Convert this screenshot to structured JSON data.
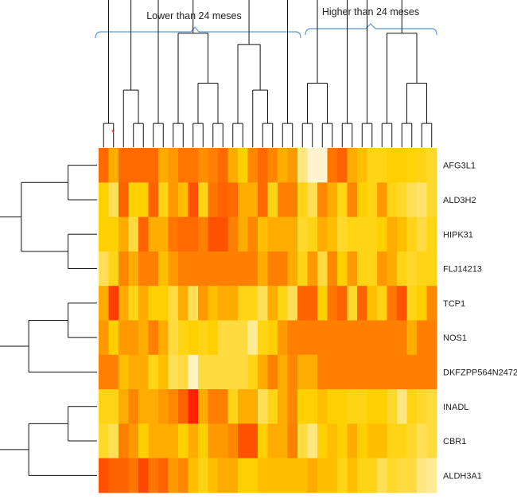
{
  "chart_data": {
    "type": "heatmap",
    "groups": [
      {
        "label": "Lower than 24 meses"
      },
      {
        "label": "Higher than 24 meses"
      }
    ],
    "rows": [
      "AFG3L1",
      "ALD3H2",
      "HIPK31",
      "FLJ14213",
      "TCP1",
      "NOS1",
      "DKFZPP564N2472",
      "INADL",
      "CBR1",
      "ALDH3A1"
    ],
    "color_scale": {
      "low": "#fff6d6",
      "mid": "#ffd000",
      "high": "#ff1a00"
    },
    "marker_symbol": "*",
    "marker_color": "#e02020",
    "values": [
      [
        0.78,
        0.6,
        0.78,
        0.78,
        0.78,
        0.78,
        0.6,
        0.65,
        0.75,
        0.75,
        0.68,
        0.72,
        0.78,
        0.6,
        0.5,
        0.7,
        0.78,
        0.7,
        0.6,
        0.65,
        0.2,
        0.02,
        0.02,
        0.75,
        0.8,
        0.6,
        0.55,
        0.45,
        0.45,
        0.5,
        0.5,
        0.48,
        0.45,
        0.4
      ],
      [
        0.5,
        0.3,
        0.8,
        0.5,
        0.5,
        0.8,
        0.45,
        0.65,
        0.55,
        0.85,
        0.45,
        0.75,
        0.8,
        0.78,
        0.6,
        0.6,
        0.78,
        0.45,
        0.72,
        0.72,
        0.45,
        0.3,
        0.7,
        0.6,
        0.45,
        0.7,
        0.5,
        0.45,
        0.65,
        0.45,
        0.4,
        0.3,
        0.25,
        0.4
      ],
      [
        0.5,
        0.5,
        0.6,
        0.35,
        0.8,
        0.6,
        0.6,
        0.75,
        0.78,
        0.78,
        0.72,
        0.85,
        0.85,
        0.72,
        0.6,
        0.7,
        0.55,
        0.6,
        0.6,
        0.6,
        0.4,
        0.45,
        0.6,
        0.55,
        0.4,
        0.45,
        0.45,
        0.45,
        0.5,
        0.6,
        0.55,
        0.45,
        0.35,
        0.45
      ],
      [
        0.3,
        0.45,
        0.7,
        0.6,
        0.72,
        0.72,
        0.55,
        0.65,
        0.72,
        0.72,
        0.72,
        0.72,
        0.72,
        0.72,
        0.72,
        0.72,
        0.6,
        0.72,
        0.72,
        0.6,
        0.45,
        0.65,
        0.35,
        0.7,
        0.5,
        0.65,
        0.45,
        0.45,
        0.65,
        0.6,
        0.45,
        0.4,
        0.45,
        0.45
      ],
      [
        0.6,
        0.9,
        0.6,
        0.45,
        0.6,
        0.5,
        0.5,
        0.35,
        0.6,
        0.3,
        0.65,
        0.55,
        0.6,
        0.6,
        0.45,
        0.45,
        0.3,
        0.6,
        0.45,
        0.3,
        0.8,
        0.8,
        0.5,
        0.75,
        0.8,
        0.4,
        0.8,
        0.55,
        0.45,
        0.75,
        0.85,
        0.45,
        0.5,
        0.7
      ],
      [
        0.65,
        0.5,
        0.65,
        0.65,
        0.6,
        0.72,
        0.6,
        0.35,
        0.45,
        0.5,
        0.45,
        0.5,
        0.35,
        0.35,
        0.35,
        0.15,
        0.45,
        0.5,
        0.65,
        0.72,
        0.72,
        0.72,
        0.72,
        0.72,
        0.72,
        0.72,
        0.72,
        0.72,
        0.72,
        0.72,
        0.72,
        0.6,
        0.72,
        0.72
      ],
      [
        0.72,
        0.72,
        0.55,
        0.6,
        0.6,
        0.45,
        0.55,
        0.3,
        0.35,
        0.05,
        0.35,
        0.35,
        0.35,
        0.35,
        0.35,
        0.45,
        0.6,
        0.72,
        0.6,
        0.7,
        0.6,
        0.6,
        0.72,
        0.72,
        0.72,
        0.72,
        0.72,
        0.72,
        0.72,
        0.72,
        0.72,
        0.72,
        0.72,
        0.72
      ],
      [
        0.45,
        0.45,
        0.6,
        0.7,
        0.6,
        0.6,
        0.65,
        0.7,
        0.8,
        0.98,
        0.6,
        0.72,
        0.72,
        0.45,
        0.6,
        0.6,
        0.3,
        0.45,
        0.6,
        0.7,
        0.5,
        0.5,
        0.55,
        0.5,
        0.5,
        0.45,
        0.45,
        0.5,
        0.5,
        0.4,
        0.2,
        0.45,
        0.4,
        0.35
      ],
      [
        0.4,
        0.3,
        0.72,
        0.65,
        0.5,
        0.6,
        0.6,
        0.6,
        0.5,
        0.6,
        0.5,
        0.65,
        0.65,
        0.7,
        0.85,
        0.85,
        0.5,
        0.6,
        0.6,
        0.72,
        0.35,
        0.2,
        0.5,
        0.55,
        0.5,
        0.6,
        0.5,
        0.55,
        0.55,
        0.45,
        0.45,
        0.4,
        0.3,
        0.35
      ],
      [
        0.85,
        0.8,
        0.8,
        0.75,
        0.88,
        0.75,
        0.8,
        0.65,
        0.7,
        0.55,
        0.45,
        0.55,
        0.6,
        0.6,
        0.5,
        0.5,
        0.55,
        0.55,
        0.55,
        0.55,
        0.55,
        0.6,
        0.55,
        0.55,
        0.45,
        0.55,
        0.45,
        0.45,
        0.3,
        0.4,
        0.35,
        0.35,
        0.2,
        0.15
      ]
    ]
  }
}
